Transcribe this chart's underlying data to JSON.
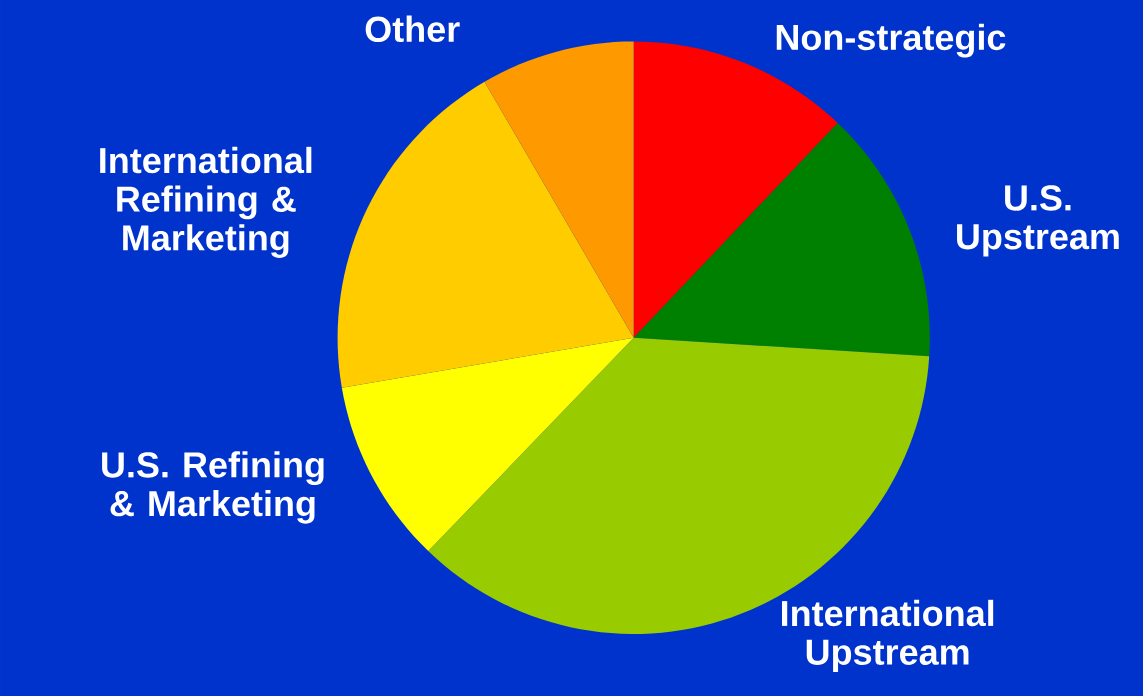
{
  "chart_data": {
    "type": "pie",
    "categories": [
      "Non-strategic",
      "U.S. Upstream",
      "International Upstream",
      "U.S. Refining & Marketing",
      "International Refining & Marketing",
      "Other"
    ],
    "values": [
      12.1,
      13.9,
      36.2,
      10.1,
      19.3,
      8.4
    ],
    "colors": [
      "#ff0000",
      "#008000",
      "#99cc00",
      "#ffff00",
      "#ffcc00",
      "#ff9900"
    ]
  }
}
